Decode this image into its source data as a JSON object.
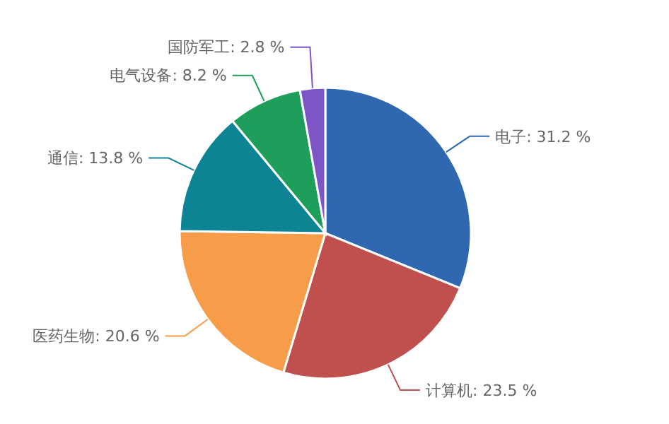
{
  "chart_data": {
    "type": "pie",
    "categories": [
      "电子",
      "计算机",
      "医药生物",
      "通信",
      "电气设备",
      "国防军工"
    ],
    "values": [
      31.2,
      23.5,
      20.6,
      13.8,
      8.2,
      2.8
    ],
    "value_labels": [
      "31.2 %",
      "23.5 %",
      "20.6 %",
      "13.8 %",
      "8.2 %",
      "2.8 %"
    ],
    "colors": [
      "#2f67b0",
      "#c0504d",
      "#f79d4a",
      "#0d8493",
      "#1d9f5b",
      "#7d55c7"
    ]
  }
}
